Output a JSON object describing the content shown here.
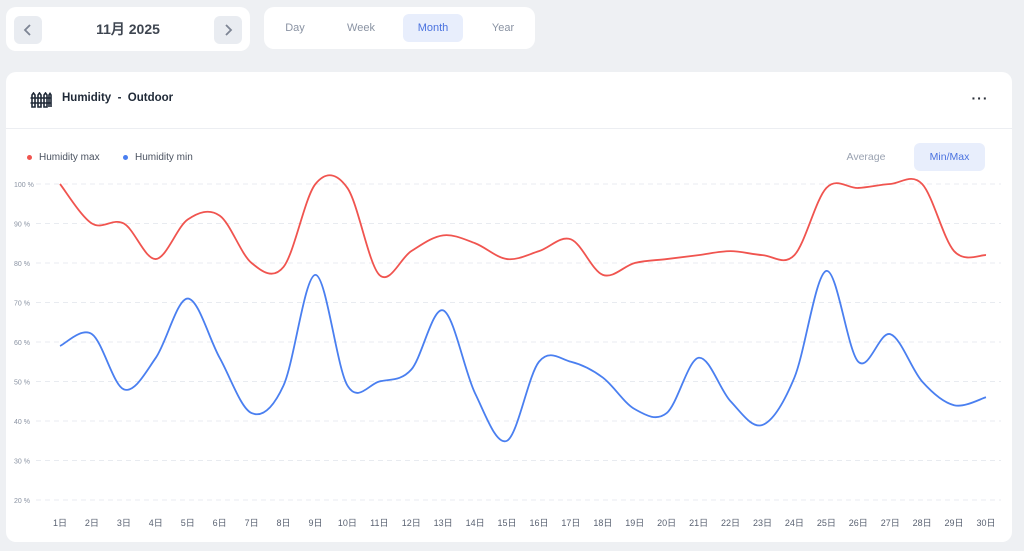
{
  "date_nav": {
    "label": "11月 2025",
    "prev_icon": "chevron-left-icon",
    "next_icon": "chevron-right-icon"
  },
  "period_tabs": [
    {
      "label": "Day",
      "active": false
    },
    {
      "label": "Week",
      "active": false
    },
    {
      "label": "Month",
      "active": true
    },
    {
      "label": "Year",
      "active": false
    }
  ],
  "card": {
    "icon": "fence-icon",
    "title": "Humidity  -  Outdoor",
    "more_icon": "more-icon",
    "more_label": "···"
  },
  "legend": {
    "max_label": "Humidity max",
    "min_label": "Humidity min"
  },
  "modes": {
    "average_label": "Average",
    "minmax_label": "Min/Max",
    "active": "Min/Max"
  },
  "colors": {
    "max_series": "#f0544f",
    "min_series": "#4a7ff0",
    "accent": "#4a72df",
    "accent_bg": "#e8eefc"
  },
  "chart_data": {
    "type": "line",
    "title": "",
    "xlabel": "",
    "ylabel": "",
    "ylim": [
      20,
      100
    ],
    "yticks": [
      100,
      90,
      80,
      70,
      60,
      50,
      40,
      30,
      20
    ],
    "ytick_labels": [
      "100 %",
      "90 %",
      "80 %",
      "70 %",
      "60 %",
      "50 %",
      "40 %",
      "30 %",
      "20 %"
    ],
    "categories": [
      "1日",
      "2日",
      "3日",
      "4日",
      "5日",
      "6日",
      "7日",
      "8日",
      "9日",
      "10日",
      "11日",
      "12日",
      "13日",
      "14日",
      "15日",
      "16日",
      "17日",
      "18日",
      "19日",
      "20日",
      "21日",
      "22日",
      "23日",
      "24日",
      "25日",
      "26日",
      "27日",
      "28日",
      "29日",
      "30日"
    ],
    "grid": true,
    "legend_position": "top-left",
    "series": [
      {
        "name": "Humidity max",
        "values": [
          100,
          90,
          90,
          81,
          91,
          92,
          80,
          79,
          100,
          99,
          77,
          83,
          87,
          85,
          81,
          83,
          86,
          77,
          80,
          81,
          82,
          83,
          82,
          82,
          99,
          99,
          100,
          100,
          83,
          82
        ]
      },
      {
        "name": "Humidity min",
        "values": [
          59,
          62,
          48,
          56,
          71,
          56,
          42,
          49,
          77,
          49,
          50,
          53,
          68,
          47,
          35,
          55,
          55,
          51,
          43,
          42,
          56,
          45,
          39,
          51,
          78,
          55,
          62,
          50,
          44,
          46
        ]
      }
    ]
  }
}
